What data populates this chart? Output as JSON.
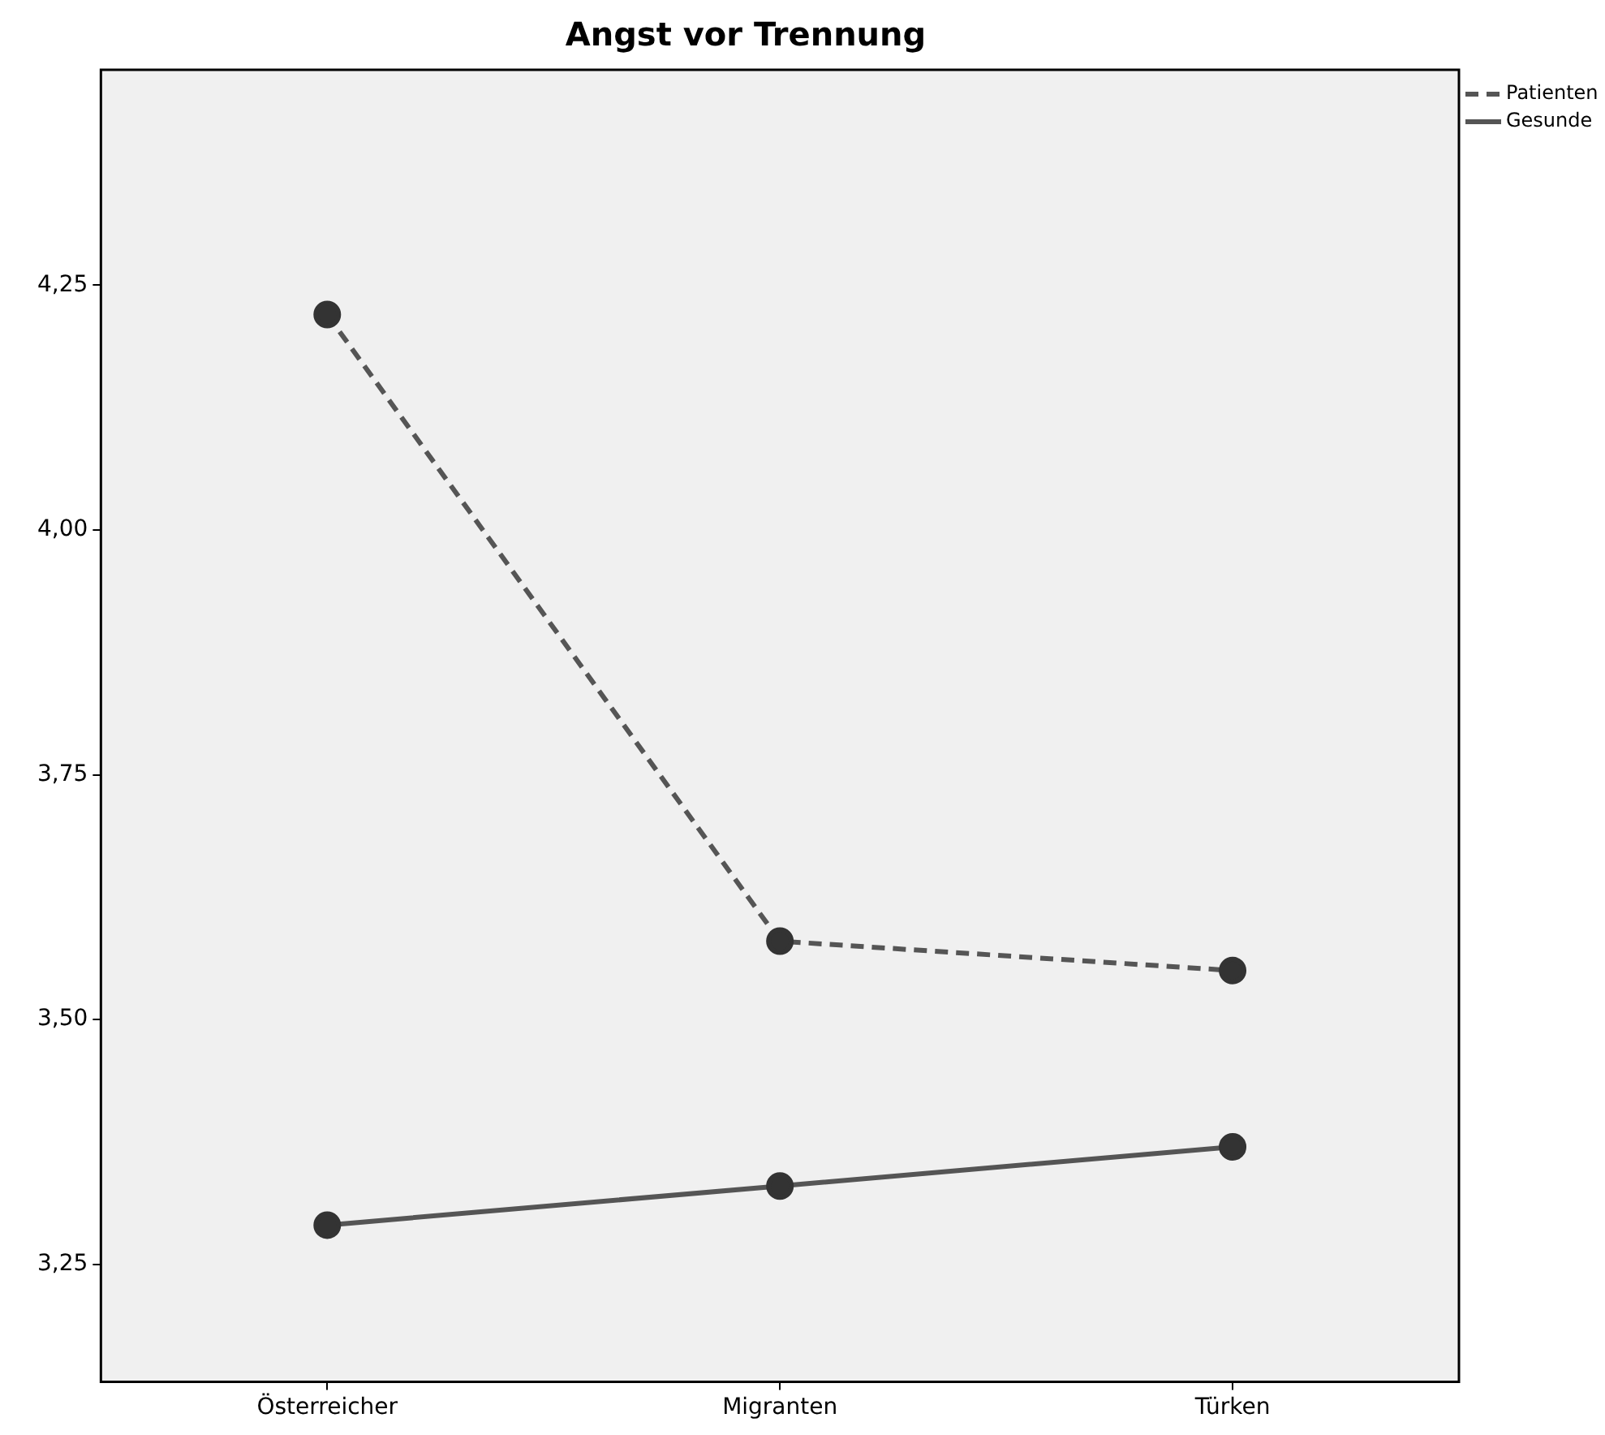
{
  "chart_data": {
    "type": "line",
    "title": "Angst vor Trennung",
    "categories": [
      "Österreicher",
      "Migranten",
      "Türken"
    ],
    "series": [
      {
        "name": "Patienten",
        "color": "#555555",
        "values": [
          4.22,
          3.58,
          3.55
        ],
        "line_style": "dashed"
      },
      {
        "name": "Gesunde",
        "color": "#555555",
        "values": [
          3.29,
          3.33,
          3.37
        ],
        "line_style": "solid"
      }
    ],
    "ylim": [
      3.13,
      4.47
    ],
    "yticks": [
      {
        "value": 3.25,
        "label": "3,25"
      },
      {
        "value": 3.5,
        "label": "3,50"
      },
      {
        "value": 3.75,
        "label": "3,75"
      },
      {
        "value": 4.0,
        "label": "4,00"
      },
      {
        "value": 4.25,
        "label": "4,25"
      }
    ],
    "grid": false,
    "legend": "top right",
    "marker": "circle"
  }
}
